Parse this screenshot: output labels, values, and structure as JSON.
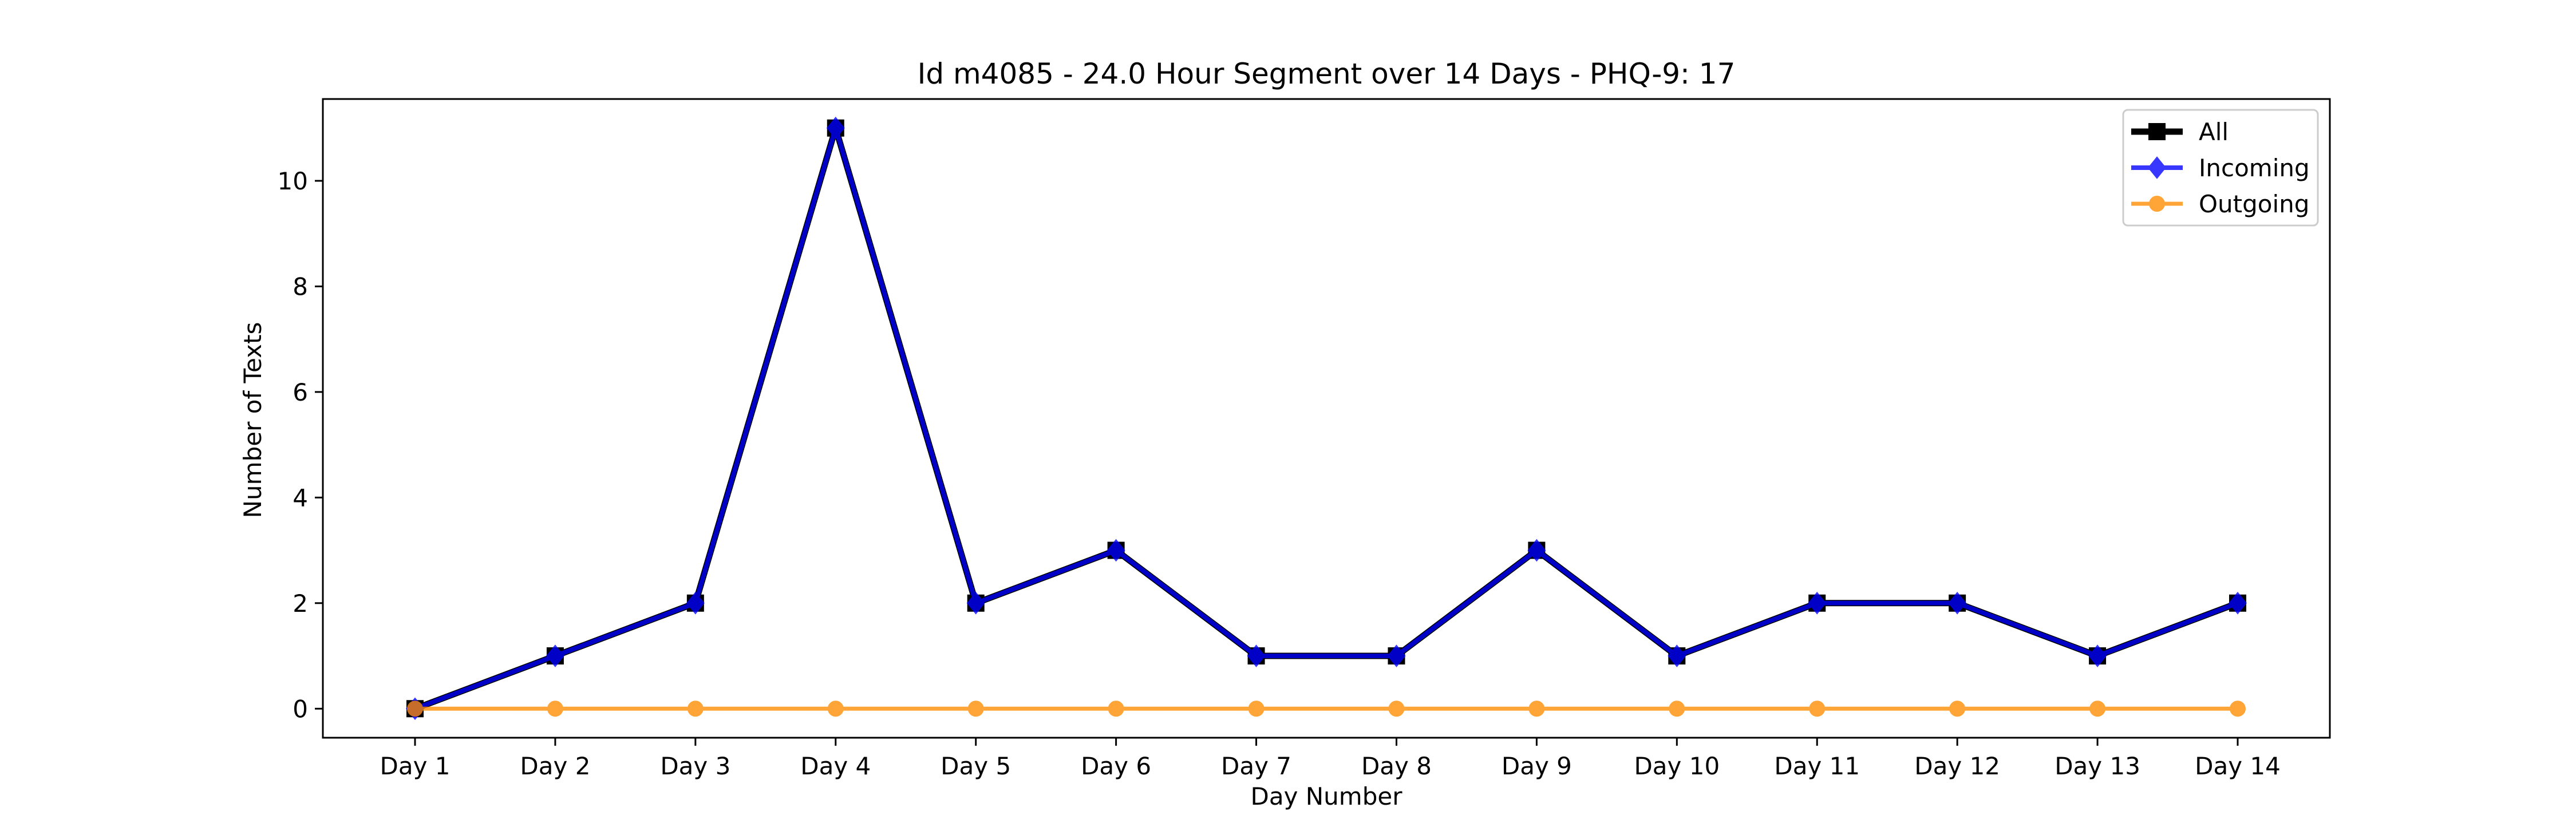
{
  "chart_data": {
    "type": "line",
    "title": "Id m4085 - 24.0 Hour Segment over 14 Days - PHQ-9: 17",
    "xlabel": "Day Number",
    "ylabel": "Number of Texts",
    "categories": [
      "Day 1",
      "Day 2",
      "Day 3",
      "Day 4",
      "Day 5",
      "Day 6",
      "Day 7",
      "Day 8",
      "Day 9",
      "Day 10",
      "Day 11",
      "Day 12",
      "Day 13",
      "Day 14"
    ],
    "yticks": [
      "0",
      "2",
      "4",
      "6",
      "8",
      "10"
    ],
    "ylim": [
      -0.55,
      11.55
    ],
    "grid": false,
    "legend_position": "top-right",
    "series": [
      {
        "name": "All",
        "values": [
          0,
          1,
          2,
          11,
          2,
          3,
          1,
          1,
          3,
          1,
          2,
          2,
          1,
          2
        ],
        "color": "#000000",
        "marker": "square"
      },
      {
        "name": "Incoming",
        "values": [
          0,
          1,
          2,
          11,
          2,
          3,
          1,
          1,
          3,
          1,
          2,
          2,
          1,
          2
        ],
        "color": "#0000ff",
        "marker": "diamond"
      },
      {
        "name": "Outgoing",
        "values": [
          0,
          0,
          0,
          0,
          0,
          0,
          0,
          0,
          0,
          0,
          0,
          0,
          0,
          0
        ],
        "color": "#ff8c00",
        "marker": "circle"
      }
    ]
  }
}
